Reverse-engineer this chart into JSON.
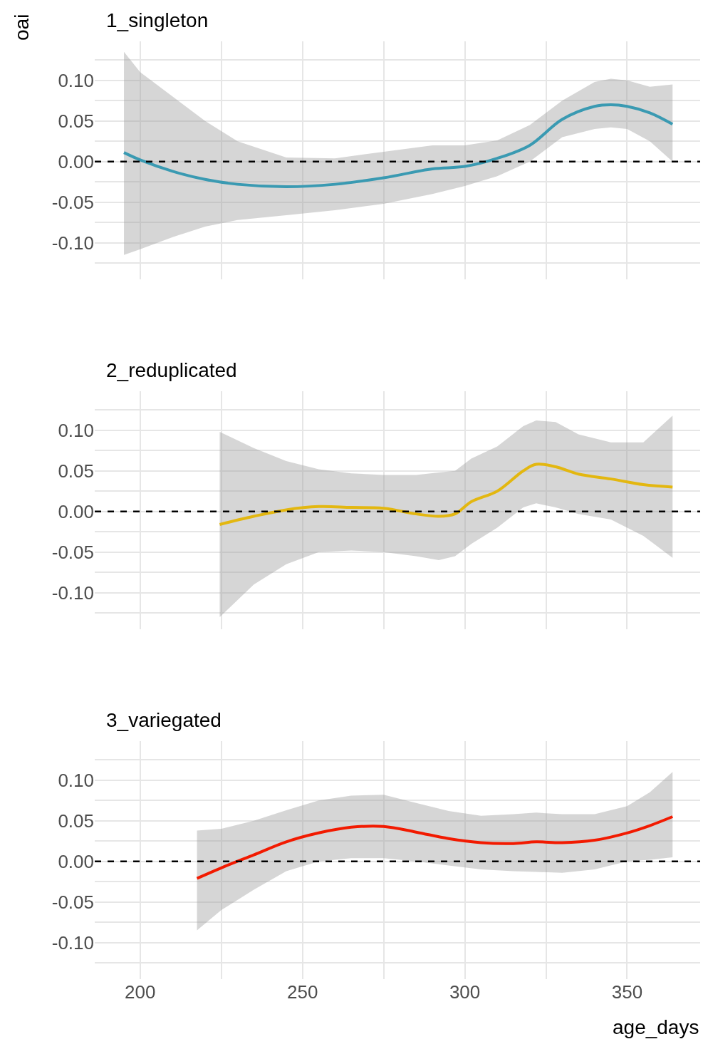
{
  "chart_data": [
    {
      "type": "line",
      "title": "1_singleton",
      "ylabel": "oai",
      "grid": true,
      "tick_labels": "y",
      "xlim": [
        186,
        372.5
      ],
      "xticks": [
        200,
        {
          "value": 225,
          "label": null
        },
        250,
        {
          "value": 275,
          "label": null
        },
        300,
        {
          "value": 325,
          "label": null
        },
        350
      ],
      "ylim": [
        -0.145,
        0.148
      ],
      "yticks": [
        {
          "value": -0.125,
          "label": null
        },
        {
          "value": -0.1,
          "label": "-0.10"
        },
        {
          "value": -0.075,
          "label": null
        },
        {
          "value": -0.05,
          "label": "-0.05"
        },
        {
          "value": -0.025,
          "label": null
        },
        {
          "value": 0,
          "label": "0.00"
        },
        {
          "value": 0.025,
          "label": null
        },
        {
          "value": 0.05,
          "label": "0.05"
        },
        {
          "value": 0.075,
          "label": null
        },
        {
          "value": 0.1,
          "label": "0.10"
        },
        {
          "value": 0.125,
          "label": null
        }
      ],
      "ref_lines": [
        {
          "axis": "y",
          "value": 0,
          "color": "#000000",
          "line_style": "dashed"
        }
      ],
      "series": [
        {
          "color": "#3a9ab2",
          "x": [
            195,
            200,
            210,
            220,
            230,
            245,
            260,
            275,
            290,
            300,
            310,
            320,
            330,
            340,
            345,
            350,
            357,
            364
          ],
          "values": [
            0.011,
            0.002,
            -0.012,
            -0.022,
            -0.028,
            -0.031,
            -0.028,
            -0.02,
            -0.009,
            -0.006,
            0.004,
            0.02,
            0.052,
            0.068,
            0.07,
            0.068,
            0.06,
            0.046
          ],
          "lower": [
            -0.115,
            -0.108,
            -0.093,
            -0.08,
            -0.072,
            -0.066,
            -0.06,
            -0.052,
            -0.04,
            -0.03,
            -0.018,
            0.0,
            0.03,
            0.04,
            0.042,
            0.04,
            0.025,
            0.0
          ],
          "upper": [
            0.135,
            0.11,
            0.08,
            0.05,
            0.025,
            0.005,
            0.004,
            0.012,
            0.02,
            0.02,
            0.026,
            0.045,
            0.075,
            0.098,
            0.102,
            0.1,
            0.092,
            0.095
          ]
        }
      ]
    },
    {
      "type": "line",
      "title": "2_reduplicated",
      "grid": true,
      "tick_labels": "y",
      "xlim": [
        186,
        372.5
      ],
      "xticks": [
        200,
        {
          "value": 225,
          "label": null
        },
        250,
        {
          "value": 275,
          "label": null
        },
        300,
        {
          "value": 325,
          "label": null
        },
        350
      ],
      "ylim": [
        -0.145,
        0.148
      ],
      "yticks": [
        {
          "value": -0.125,
          "label": null
        },
        {
          "value": -0.1,
          "label": "-0.10"
        },
        {
          "value": -0.075,
          "label": null
        },
        {
          "value": -0.05,
          "label": "-0.05"
        },
        {
          "value": -0.025,
          "label": null
        },
        {
          "value": 0,
          "label": "0.00"
        },
        {
          "value": 0.025,
          "label": null
        },
        {
          "value": 0.05,
          "label": "0.05"
        },
        {
          "value": 0.075,
          "label": null
        },
        {
          "value": 0.1,
          "label": "0.10"
        },
        {
          "value": 0.125,
          "label": null
        }
      ],
      "ref_lines": [
        {
          "axis": "y",
          "value": 0,
          "color": "#000000",
          "line_style": "dashed"
        }
      ],
      "series": [
        {
          "color": "#e3b710",
          "x": [
            224.5,
            235,
            245,
            255,
            265,
            275,
            285,
            292,
            297,
            302,
            310,
            318,
            322,
            328,
            335,
            345,
            355,
            364
          ],
          "values": [
            -0.016,
            -0.006,
            0.002,
            0.006,
            0.005,
            0.004,
            -0.003,
            -0.006,
            -0.003,
            0.012,
            0.025,
            0.05,
            0.058,
            0.055,
            0.046,
            0.04,
            0.033,
            0.03
          ],
          "lower": [
            -0.13,
            -0.09,
            -0.065,
            -0.05,
            -0.048,
            -0.05,
            -0.055,
            -0.06,
            -0.055,
            -0.04,
            -0.02,
            0.005,
            0.01,
            0.005,
            -0.003,
            -0.01,
            -0.03,
            -0.057
          ],
          "upper": [
            0.098,
            0.078,
            0.062,
            0.052,
            0.047,
            0.045,
            0.045,
            0.048,
            0.05,
            0.065,
            0.08,
            0.105,
            0.112,
            0.11,
            0.095,
            0.085,
            0.085,
            0.118
          ]
        }
      ]
    },
    {
      "type": "line",
      "title": "3_variegated",
      "xlabel": "age_days",
      "grid": true,
      "xlim": [
        186,
        372.5
      ],
      "xticks": [
        {
          "value": 200,
          "label": "200"
        },
        {
          "value": 225,
          "label": null
        },
        {
          "value": 250,
          "label": "250"
        },
        {
          "value": 275,
          "label": null
        },
        {
          "value": 300,
          "label": "300"
        },
        {
          "value": 325,
          "label": null
        },
        {
          "value": 350,
          "label": "350"
        }
      ],
      "ylim": [
        -0.145,
        0.148
      ],
      "yticks": [
        {
          "value": -0.125,
          "label": null
        },
        {
          "value": -0.1,
          "label": "-0.10"
        },
        {
          "value": -0.075,
          "label": null
        },
        {
          "value": -0.05,
          "label": "-0.05"
        },
        {
          "value": -0.025,
          "label": null
        },
        {
          "value": 0,
          "label": "0.00"
        },
        {
          "value": 0.025,
          "label": null
        },
        {
          "value": 0.05,
          "label": "0.05"
        },
        {
          "value": 0.075,
          "label": null
        },
        {
          "value": 0.1,
          "label": "0.10"
        },
        {
          "value": 0.125,
          "label": null
        }
      ],
      "ref_lines": [
        {
          "axis": "y",
          "value": 0,
          "color": "#000000",
          "line_style": "dashed"
        }
      ],
      "series": [
        {
          "color": "#f21a00",
          "x": [
            217.5,
            225,
            235,
            245,
            255,
            265,
            275,
            285,
            295,
            305,
            315,
            322,
            330,
            340,
            350,
            357,
            364
          ],
          "values": [
            -0.021,
            -0.008,
            0.008,
            0.024,
            0.035,
            0.042,
            0.043,
            0.036,
            0.028,
            0.023,
            0.022,
            0.024,
            0.023,
            0.026,
            0.035,
            0.044,
            0.055
          ],
          "lower": [
            -0.085,
            -0.06,
            -0.035,
            -0.012,
            0.0,
            0.004,
            0.004,
            0.0,
            -0.005,
            -0.01,
            -0.012,
            -0.013,
            -0.014,
            -0.01,
            0.0,
            0.002,
            0.005
          ],
          "upper": [
            0.038,
            0.04,
            0.05,
            0.063,
            0.075,
            0.081,
            0.082,
            0.072,
            0.062,
            0.056,
            0.058,
            0.06,
            0.058,
            0.058,
            0.068,
            0.085,
            0.11
          ]
        }
      ]
    }
  ]
}
